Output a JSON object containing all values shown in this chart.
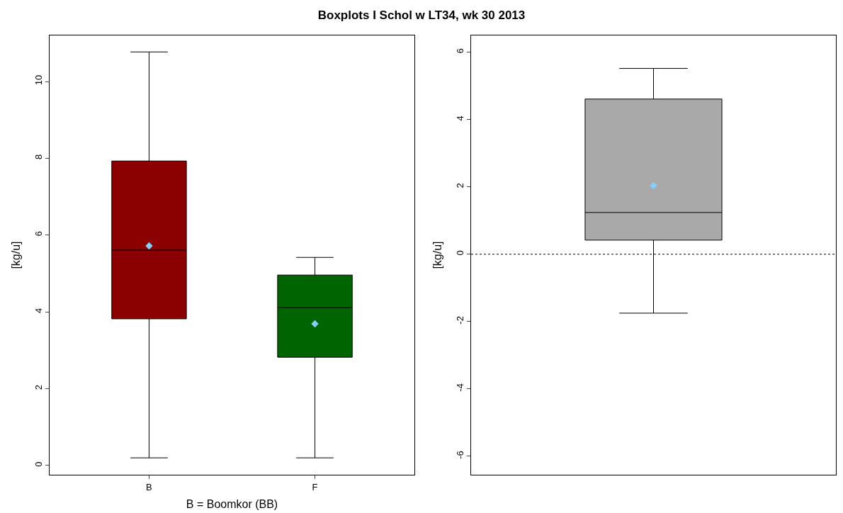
{
  "chart_data": [
    {
      "type": "box",
      "title": "Boxplots I Schol w LT34, wk 30 2013",
      "categories": [
        "B",
        "F"
      ],
      "xlabel": "B = Boomkor (BB)",
      "ylabel": "[kg/u]",
      "colors": [
        "#8b0000",
        "#006400"
      ],
      "boxes": [
        {
          "low": 0.2,
          "q1": 3.82,
          "median": 5.61,
          "q3": 7.93,
          "high": 10.77,
          "mean": 5.72
        },
        {
          "low": 0.2,
          "q1": 2.82,
          "median": 4.11,
          "q3": 4.96,
          "high": 5.42,
          "mean": 3.69
        }
      ],
      "ylim": [
        -0.24,
        11.2
      ],
      "yticks": [
        0,
        2,
        4,
        6,
        8,
        10
      ]
    },
    {
      "type": "box",
      "categories": [
        null
      ],
      "ylabel": "[kg/u]",
      "colors": [
        "#a9a9a9"
      ],
      "boxes": [
        {
          "low": -1.75,
          "q1": 0.42,
          "median": 1.24,
          "q3": 4.61,
          "high": 5.52,
          "mean": 2.04
        }
      ],
      "ylim": [
        -6.55,
        6.5
      ],
      "yticks": [
        -6,
        -4,
        -2,
        0,
        2,
        4,
        6
      ],
      "ref_lines": [
        {
          "axis": "y",
          "value": 0,
          "line_style": "dotted"
        }
      ]
    }
  ]
}
